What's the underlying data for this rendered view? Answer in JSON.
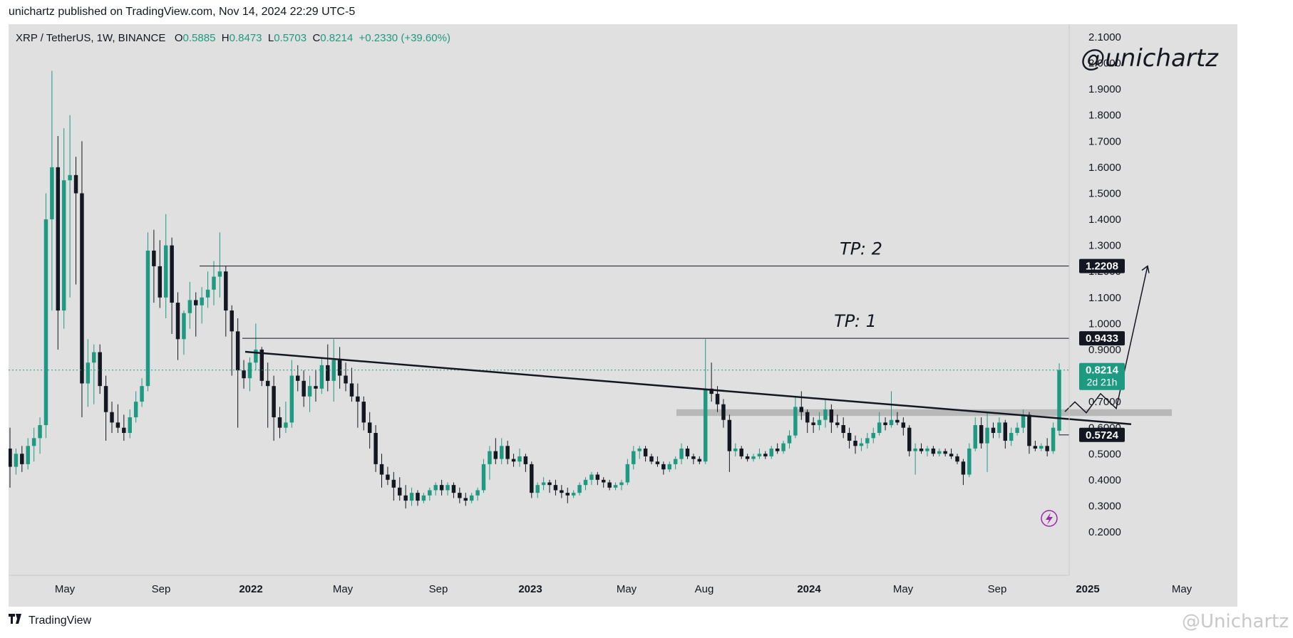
{
  "header": {
    "published": "unichartz published on TradingView.com, Nov 14, 2024 22:29 UTC-5"
  },
  "legend": {
    "symbol": "XRP / TetherUS, 1W, BINANCE",
    "o_label": "O",
    "o": "0.5885",
    "h_label": "H",
    "h": "0.8473",
    "l_label": "L",
    "l": "0.5703",
    "c_label": "C",
    "c": "0.8214",
    "change": "+0.2330 (+39.60%)"
  },
  "watermark": "@unichartz",
  "footer": {
    "brand": "TradingView",
    "watermark": "@Unichartz"
  },
  "colors": {
    "up": "#1e9a83",
    "down": "#131722",
    "background": "#e0e0e0",
    "zone": "#b0b0b0"
  },
  "chart_data": {
    "type": "candlestick",
    "symbol": "XRP / TetherUS",
    "interval": "1W",
    "exchange": "BINANCE",
    "ylim": [
      0.1,
      2.2
    ],
    "y_ticks": [
      "0.2000",
      "0.3000",
      "0.4000",
      "0.5000",
      "0.6000",
      "0.7000",
      "0.8000",
      "0.9000",
      "1.0000",
      "1.1000",
      "1.2000",
      "1.3000",
      "1.4000",
      "1.5000",
      "1.6000",
      "1.7000",
      "1.8000",
      "1.9000",
      "2.0000",
      "2.1000"
    ],
    "x_ticks": [
      "May",
      "Sep",
      "2022",
      "May",
      "Sep",
      "2023",
      "May",
      "Aug",
      "2024",
      "May",
      "Sep",
      "2025",
      "May"
    ],
    "x_ticks_bold": [
      "2022",
      "2023",
      "2024",
      "2025"
    ],
    "price_labels": [
      {
        "value": 1.2208,
        "text": "1.2208"
      },
      {
        "value": 0.9433,
        "text": "0.9433"
      },
      {
        "value": 0.5724,
        "text": "0.5724"
      }
    ],
    "current_price": {
      "value": 0.8214,
      "text": "0.8214",
      "countdown": "2d 21h"
    },
    "annotations": [
      {
        "text": "TP: 2",
        "level": 1.2208
      },
      {
        "text": "TP: 1",
        "level": 0.9433
      }
    ],
    "trendline": {
      "from": [
        0.8956,
        0.8917
      ],
      "to": [
        0.3318,
        0.6136
      ]
    },
    "support_zone": [
      0.6452,
      0.6709
    ],
    "projection": [
      [
        0.8167,
        0.6617
      ],
      [
        0.8224,
        0.6991
      ],
      [
        0.8316,
        0.6574
      ],
      [
        0.8407,
        0.7208
      ],
      [
        0.851,
        0.6739
      ],
      [
        0.9054,
        1.2208
      ]
    ],
    "x_positions_note": "x values for drawings are fractions of time axis",
    "candles": [
      {
        "o": 0.52,
        "h": 0.6,
        "l": 0.37,
        "c": 0.45
      },
      {
        "o": 0.45,
        "h": 0.52,
        "l": 0.42,
        "c": 0.5
      },
      {
        "o": 0.5,
        "h": 0.53,
        "l": 0.43,
        "c": 0.46
      },
      {
        "o": 0.46,
        "h": 0.56,
        "l": 0.44,
        "c": 0.53
      },
      {
        "o": 0.53,
        "h": 0.6,
        "l": 0.47,
        "c": 0.56
      },
      {
        "o": 0.56,
        "h": 0.64,
        "l": 0.5,
        "c": 0.61
      },
      {
        "o": 0.61,
        "h": 1.5,
        "l": 0.56,
        "c": 1.4
      },
      {
        "o": 1.4,
        "h": 1.97,
        "l": 1.05,
        "c": 1.6
      },
      {
        "o": 1.6,
        "h": 1.72,
        "l": 0.9,
        "c": 1.05
      },
      {
        "o": 1.05,
        "h": 1.75,
        "l": 0.98,
        "c": 1.55
      },
      {
        "o": 1.55,
        "h": 1.8,
        "l": 1.1,
        "c": 1.57
      },
      {
        "o": 1.57,
        "h": 1.64,
        "l": 1.15,
        "c": 1.5
      },
      {
        "o": 1.5,
        "h": 1.7,
        "l": 0.64,
        "c": 0.77
      },
      {
        "o": 0.77,
        "h": 0.94,
        "l": 0.68,
        "c": 0.85
      },
      {
        "o": 0.85,
        "h": 0.92,
        "l": 0.69,
        "c": 0.89
      },
      {
        "o": 0.89,
        "h": 0.92,
        "l": 0.73,
        "c": 0.76
      },
      {
        "o": 0.76,
        "h": 0.8,
        "l": 0.55,
        "c": 0.66
      },
      {
        "o": 0.66,
        "h": 0.7,
        "l": 0.58,
        "c": 0.62
      },
      {
        "o": 0.62,
        "h": 0.69,
        "l": 0.58,
        "c": 0.6
      },
      {
        "o": 0.6,
        "h": 0.65,
        "l": 0.55,
        "c": 0.58
      },
      {
        "o": 0.58,
        "h": 0.67,
        "l": 0.56,
        "c": 0.64
      },
      {
        "o": 0.64,
        "h": 0.74,
        "l": 0.62,
        "c": 0.7
      },
      {
        "o": 0.7,
        "h": 0.79,
        "l": 0.68,
        "c": 0.76
      },
      {
        "o": 0.76,
        "h": 1.35,
        "l": 0.74,
        "c": 1.28
      },
      {
        "o": 1.28,
        "h": 1.36,
        "l": 1.08,
        "c": 1.22
      },
      {
        "o": 1.22,
        "h": 1.32,
        "l": 1.06,
        "c": 1.1
      },
      {
        "o": 1.1,
        "h": 1.42,
        "l": 1.02,
        "c": 1.3
      },
      {
        "o": 1.3,
        "h": 1.33,
        "l": 0.96,
        "c": 1.08
      },
      {
        "o": 1.08,
        "h": 1.12,
        "l": 0.86,
        "c": 0.94
      },
      {
        "o": 0.94,
        "h": 1.05,
        "l": 0.88,
        "c": 1.04
      },
      {
        "o": 1.04,
        "h": 1.16,
        "l": 0.98,
        "c": 1.09
      },
      {
        "o": 1.09,
        "h": 1.12,
        "l": 0.95,
        "c": 1.07
      },
      {
        "o": 1.07,
        "h": 1.14,
        "l": 1.0,
        "c": 1.1
      },
      {
        "o": 1.1,
        "h": 1.2,
        "l": 1.06,
        "c": 1.13
      },
      {
        "o": 1.13,
        "h": 1.24,
        "l": 1.07,
        "c": 1.18
      },
      {
        "o": 1.18,
        "h": 1.35,
        "l": 1.1,
        "c": 1.2
      },
      {
        "o": 1.2,
        "h": 1.22,
        "l": 0.95,
        "c": 1.05
      },
      {
        "o": 1.05,
        "h": 1.07,
        "l": 0.8,
        "c": 0.97
      },
      {
        "o": 0.97,
        "h": 1.02,
        "l": 0.6,
        "c": 0.82
      },
      {
        "o": 0.82,
        "h": 0.86,
        "l": 0.75,
        "c": 0.79
      },
      {
        "o": 0.79,
        "h": 0.87,
        "l": 0.74,
        "c": 0.85
      },
      {
        "o": 0.85,
        "h": 1.0,
        "l": 0.82,
        "c": 0.9
      },
      {
        "o": 0.9,
        "h": 0.91,
        "l": 0.76,
        "c": 0.78
      },
      {
        "o": 0.78,
        "h": 0.85,
        "l": 0.6,
        "c": 0.76
      },
      {
        "o": 0.76,
        "h": 0.8,
        "l": 0.55,
        "c": 0.64
      },
      {
        "o": 0.64,
        "h": 0.68,
        "l": 0.56,
        "c": 0.6
      },
      {
        "o": 0.6,
        "h": 0.7,
        "l": 0.58,
        "c": 0.62
      },
      {
        "o": 0.62,
        "h": 0.86,
        "l": 0.6,
        "c": 0.8
      },
      {
        "o": 0.8,
        "h": 0.84,
        "l": 0.74,
        "c": 0.78
      },
      {
        "o": 0.78,
        "h": 0.82,
        "l": 0.68,
        "c": 0.72
      },
      {
        "o": 0.72,
        "h": 0.8,
        "l": 0.66,
        "c": 0.76
      },
      {
        "o": 0.76,
        "h": 0.82,
        "l": 0.7,
        "c": 0.75
      },
      {
        "o": 0.75,
        "h": 0.87,
        "l": 0.73,
        "c": 0.84
      },
      {
        "o": 0.84,
        "h": 0.92,
        "l": 0.74,
        "c": 0.78
      },
      {
        "o": 0.78,
        "h": 0.94,
        "l": 0.7,
        "c": 0.86
      },
      {
        "o": 0.86,
        "h": 0.91,
        "l": 0.75,
        "c": 0.8
      },
      {
        "o": 0.8,
        "h": 0.85,
        "l": 0.74,
        "c": 0.77
      },
      {
        "o": 0.77,
        "h": 0.83,
        "l": 0.7,
        "c": 0.72
      },
      {
        "o": 0.72,
        "h": 0.77,
        "l": 0.6,
        "c": 0.7
      },
      {
        "o": 0.7,
        "h": 0.72,
        "l": 0.59,
        "c": 0.62
      },
      {
        "o": 0.62,
        "h": 0.66,
        "l": 0.52,
        "c": 0.58
      },
      {
        "o": 0.58,
        "h": 0.61,
        "l": 0.43,
        "c": 0.46
      },
      {
        "o": 0.46,
        "h": 0.5,
        "l": 0.37,
        "c": 0.42
      },
      {
        "o": 0.42,
        "h": 0.45,
        "l": 0.38,
        "c": 0.4
      },
      {
        "o": 0.4,
        "h": 0.43,
        "l": 0.32,
        "c": 0.37
      },
      {
        "o": 0.37,
        "h": 0.41,
        "l": 0.32,
        "c": 0.34
      },
      {
        "o": 0.34,
        "h": 0.38,
        "l": 0.29,
        "c": 0.32
      },
      {
        "o": 0.32,
        "h": 0.37,
        "l": 0.3,
        "c": 0.35
      },
      {
        "o": 0.35,
        "h": 0.36,
        "l": 0.3,
        "c": 0.32
      },
      {
        "o": 0.32,
        "h": 0.35,
        "l": 0.31,
        "c": 0.34
      },
      {
        "o": 0.34,
        "h": 0.37,
        "l": 0.32,
        "c": 0.36
      },
      {
        "o": 0.36,
        "h": 0.39,
        "l": 0.34,
        "c": 0.38
      },
      {
        "o": 0.38,
        "h": 0.4,
        "l": 0.34,
        "c": 0.36
      },
      {
        "o": 0.36,
        "h": 0.39,
        "l": 0.34,
        "c": 0.38
      },
      {
        "o": 0.38,
        "h": 0.39,
        "l": 0.33,
        "c": 0.35
      },
      {
        "o": 0.35,
        "h": 0.37,
        "l": 0.31,
        "c": 0.33
      },
      {
        "o": 0.33,
        "h": 0.35,
        "l": 0.3,
        "c": 0.32
      },
      {
        "o": 0.32,
        "h": 0.35,
        "l": 0.31,
        "c": 0.34
      },
      {
        "o": 0.34,
        "h": 0.37,
        "l": 0.32,
        "c": 0.36
      },
      {
        "o": 0.36,
        "h": 0.48,
        "l": 0.35,
        "c": 0.46
      },
      {
        "o": 0.46,
        "h": 0.53,
        "l": 0.4,
        "c": 0.51
      },
      {
        "o": 0.51,
        "h": 0.56,
        "l": 0.46,
        "c": 0.48
      },
      {
        "o": 0.48,
        "h": 0.56,
        "l": 0.46,
        "c": 0.53
      },
      {
        "o": 0.53,
        "h": 0.55,
        "l": 0.46,
        "c": 0.48
      },
      {
        "o": 0.48,
        "h": 0.5,
        "l": 0.45,
        "c": 0.47
      },
      {
        "o": 0.47,
        "h": 0.52,
        "l": 0.45,
        "c": 0.49
      },
      {
        "o": 0.49,
        "h": 0.5,
        "l": 0.43,
        "c": 0.46
      },
      {
        "o": 0.46,
        "h": 0.47,
        "l": 0.33,
        "c": 0.35
      },
      {
        "o": 0.35,
        "h": 0.39,
        "l": 0.33,
        "c": 0.38
      },
      {
        "o": 0.38,
        "h": 0.41,
        "l": 0.36,
        "c": 0.39
      },
      {
        "o": 0.39,
        "h": 0.4,
        "l": 0.35,
        "c": 0.38
      },
      {
        "o": 0.38,
        "h": 0.4,
        "l": 0.34,
        "c": 0.36
      },
      {
        "o": 0.36,
        "h": 0.38,
        "l": 0.33,
        "c": 0.35
      },
      {
        "o": 0.35,
        "h": 0.37,
        "l": 0.31,
        "c": 0.34
      },
      {
        "o": 0.34,
        "h": 0.36,
        "l": 0.33,
        "c": 0.35
      },
      {
        "o": 0.35,
        "h": 0.39,
        "l": 0.34,
        "c": 0.38
      },
      {
        "o": 0.38,
        "h": 0.41,
        "l": 0.36,
        "c": 0.4
      },
      {
        "o": 0.4,
        "h": 0.43,
        "l": 0.38,
        "c": 0.42
      },
      {
        "o": 0.42,
        "h": 0.43,
        "l": 0.38,
        "c": 0.4
      },
      {
        "o": 0.4,
        "h": 0.41,
        "l": 0.37,
        "c": 0.39
      },
      {
        "o": 0.39,
        "h": 0.4,
        "l": 0.36,
        "c": 0.37
      },
      {
        "o": 0.37,
        "h": 0.39,
        "l": 0.36,
        "c": 0.38
      },
      {
        "o": 0.38,
        "h": 0.4,
        "l": 0.36,
        "c": 0.39
      },
      {
        "o": 0.39,
        "h": 0.48,
        "l": 0.38,
        "c": 0.46
      },
      {
        "o": 0.46,
        "h": 0.53,
        "l": 0.44,
        "c": 0.51
      },
      {
        "o": 0.51,
        "h": 0.53,
        "l": 0.48,
        "c": 0.52
      },
      {
        "o": 0.52,
        "h": 0.53,
        "l": 0.47,
        "c": 0.49
      },
      {
        "o": 0.49,
        "h": 0.5,
        "l": 0.46,
        "c": 0.47
      },
      {
        "o": 0.47,
        "h": 0.49,
        "l": 0.45,
        "c": 0.46
      },
      {
        "o": 0.46,
        "h": 0.47,
        "l": 0.42,
        "c": 0.44
      },
      {
        "o": 0.44,
        "h": 0.47,
        "l": 0.43,
        "c": 0.46
      },
      {
        "o": 0.46,
        "h": 0.49,
        "l": 0.44,
        "c": 0.48
      },
      {
        "o": 0.48,
        "h": 0.54,
        "l": 0.46,
        "c": 0.52
      },
      {
        "o": 0.52,
        "h": 0.53,
        "l": 0.48,
        "c": 0.49
      },
      {
        "o": 0.49,
        "h": 0.5,
        "l": 0.46,
        "c": 0.48
      },
      {
        "o": 0.48,
        "h": 0.49,
        "l": 0.46,
        "c": 0.47
      },
      {
        "o": 0.47,
        "h": 0.94,
        "l": 0.46,
        "c": 0.75
      },
      {
        "o": 0.75,
        "h": 0.85,
        "l": 0.7,
        "c": 0.73
      },
      {
        "o": 0.73,
        "h": 0.76,
        "l": 0.66,
        "c": 0.69
      },
      {
        "o": 0.69,
        "h": 0.71,
        "l": 0.6,
        "c": 0.63
      },
      {
        "o": 0.63,
        "h": 0.65,
        "l": 0.43,
        "c": 0.51
      },
      {
        "o": 0.51,
        "h": 0.54,
        "l": 0.49,
        "c": 0.52
      },
      {
        "o": 0.52,
        "h": 0.53,
        "l": 0.48,
        "c": 0.49
      },
      {
        "o": 0.49,
        "h": 0.5,
        "l": 0.47,
        "c": 0.48
      },
      {
        "o": 0.48,
        "h": 0.5,
        "l": 0.47,
        "c": 0.49
      },
      {
        "o": 0.49,
        "h": 0.52,
        "l": 0.48,
        "c": 0.5
      },
      {
        "o": 0.5,
        "h": 0.51,
        "l": 0.48,
        "c": 0.49
      },
      {
        "o": 0.49,
        "h": 0.53,
        "l": 0.48,
        "c": 0.52
      },
      {
        "o": 0.52,
        "h": 0.54,
        "l": 0.5,
        "c": 0.51
      },
      {
        "o": 0.51,
        "h": 0.55,
        "l": 0.5,
        "c": 0.54
      },
      {
        "o": 0.54,
        "h": 0.59,
        "l": 0.52,
        "c": 0.57
      },
      {
        "o": 0.57,
        "h": 0.72,
        "l": 0.56,
        "c": 0.68
      },
      {
        "o": 0.68,
        "h": 0.74,
        "l": 0.63,
        "c": 0.66
      },
      {
        "o": 0.66,
        "h": 0.67,
        "l": 0.58,
        "c": 0.62
      },
      {
        "o": 0.62,
        "h": 0.64,
        "l": 0.58,
        "c": 0.61
      },
      {
        "o": 0.61,
        "h": 0.66,
        "l": 0.59,
        "c": 0.63
      },
      {
        "o": 0.63,
        "h": 0.71,
        "l": 0.6,
        "c": 0.67
      },
      {
        "o": 0.67,
        "h": 0.69,
        "l": 0.58,
        "c": 0.62
      },
      {
        "o": 0.62,
        "h": 0.65,
        "l": 0.6,
        "c": 0.61
      },
      {
        "o": 0.61,
        "h": 0.64,
        "l": 0.56,
        "c": 0.58
      },
      {
        "o": 0.58,
        "h": 0.6,
        "l": 0.52,
        "c": 0.55
      },
      {
        "o": 0.55,
        "h": 0.57,
        "l": 0.5,
        "c": 0.53
      },
      {
        "o": 0.53,
        "h": 0.56,
        "l": 0.51,
        "c": 0.54
      },
      {
        "o": 0.54,
        "h": 0.58,
        "l": 0.52,
        "c": 0.56
      },
      {
        "o": 0.56,
        "h": 0.6,
        "l": 0.54,
        "c": 0.58
      },
      {
        "o": 0.58,
        "h": 0.66,
        "l": 0.57,
        "c": 0.62
      },
      {
        "o": 0.62,
        "h": 0.64,
        "l": 0.59,
        "c": 0.61
      },
      {
        "o": 0.61,
        "h": 0.74,
        "l": 0.6,
        "c": 0.63
      },
      {
        "o": 0.63,
        "h": 0.66,
        "l": 0.61,
        "c": 0.62
      },
      {
        "o": 0.62,
        "h": 0.64,
        "l": 0.57,
        "c": 0.6
      },
      {
        "o": 0.6,
        "h": 0.61,
        "l": 0.49,
        "c": 0.51
      },
      {
        "o": 0.51,
        "h": 0.54,
        "l": 0.42,
        "c": 0.52
      },
      {
        "o": 0.52,
        "h": 0.54,
        "l": 0.5,
        "c": 0.51
      },
      {
        "o": 0.51,
        "h": 0.53,
        "l": 0.49,
        "c": 0.52
      },
      {
        "o": 0.52,
        "h": 0.53,
        "l": 0.49,
        "c": 0.5
      },
      {
        "o": 0.5,
        "h": 0.52,
        "l": 0.49,
        "c": 0.51
      },
      {
        "o": 0.51,
        "h": 0.52,
        "l": 0.49,
        "c": 0.5
      },
      {
        "o": 0.5,
        "h": 0.52,
        "l": 0.48,
        "c": 0.49
      },
      {
        "o": 0.49,
        "h": 0.5,
        "l": 0.46,
        "c": 0.47
      },
      {
        "o": 0.47,
        "h": 0.48,
        "l": 0.38,
        "c": 0.42
      },
      {
        "o": 0.42,
        "h": 0.54,
        "l": 0.41,
        "c": 0.52
      },
      {
        "o": 0.52,
        "h": 0.64,
        "l": 0.51,
        "c": 0.61
      },
      {
        "o": 0.61,
        "h": 0.64,
        "l": 0.52,
        "c": 0.54
      },
      {
        "o": 0.54,
        "h": 0.66,
        "l": 0.43,
        "c": 0.6
      },
      {
        "o": 0.6,
        "h": 0.62,
        "l": 0.56,
        "c": 0.58
      },
      {
        "o": 0.58,
        "h": 0.64,
        "l": 0.56,
        "c": 0.62
      },
      {
        "o": 0.62,
        "h": 0.63,
        "l": 0.52,
        "c": 0.55
      },
      {
        "o": 0.55,
        "h": 0.6,
        "l": 0.53,
        "c": 0.58
      },
      {
        "o": 0.58,
        "h": 0.62,
        "l": 0.57,
        "c": 0.6
      },
      {
        "o": 0.6,
        "h": 0.67,
        "l": 0.58,
        "c": 0.65
      },
      {
        "o": 0.65,
        "h": 0.66,
        "l": 0.5,
        "c": 0.53
      },
      {
        "o": 0.53,
        "h": 0.55,
        "l": 0.51,
        "c": 0.52
      },
      {
        "o": 0.52,
        "h": 0.54,
        "l": 0.51,
        "c": 0.53
      },
      {
        "o": 0.53,
        "h": 0.56,
        "l": 0.49,
        "c": 0.51
      },
      {
        "o": 0.51,
        "h": 0.62,
        "l": 0.5,
        "c": 0.6
      },
      {
        "o": 0.5885,
        "h": 0.8473,
        "l": 0.5703,
        "c": 0.8214
      }
    ]
  }
}
